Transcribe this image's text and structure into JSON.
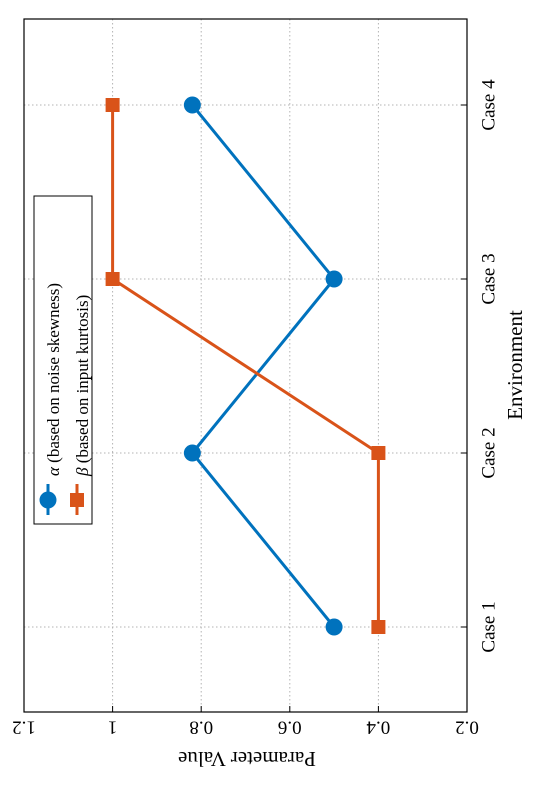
{
  "chart_data": {
    "type": "line",
    "orientation": "rotated-90-clockwise",
    "categories": [
      "Case 1",
      "Case 2",
      "Case 3",
      "Case 4"
    ],
    "xlabel": "Environment",
    "ylabel": "Parameter Value",
    "ylim": [
      0.2,
      1.2
    ],
    "yticks": [
      "0.2",
      "0.4",
      "0.6",
      "0.8",
      "1",
      "1.2"
    ],
    "grid": true,
    "legend_position": "top-left",
    "series": [
      {
        "symbol": "α",
        "name": " (based on noise skewness)",
        "values": [
          0.5,
          0.82,
          0.5,
          0.82
        ],
        "color": "#0072BD",
        "marker": "circle"
      },
      {
        "symbol": "β",
        "name": " (based on input kurtosis)",
        "values": [
          0.4,
          0.4,
          1.0,
          1.0
        ],
        "color": "#D95319",
        "marker": "square"
      }
    ]
  }
}
